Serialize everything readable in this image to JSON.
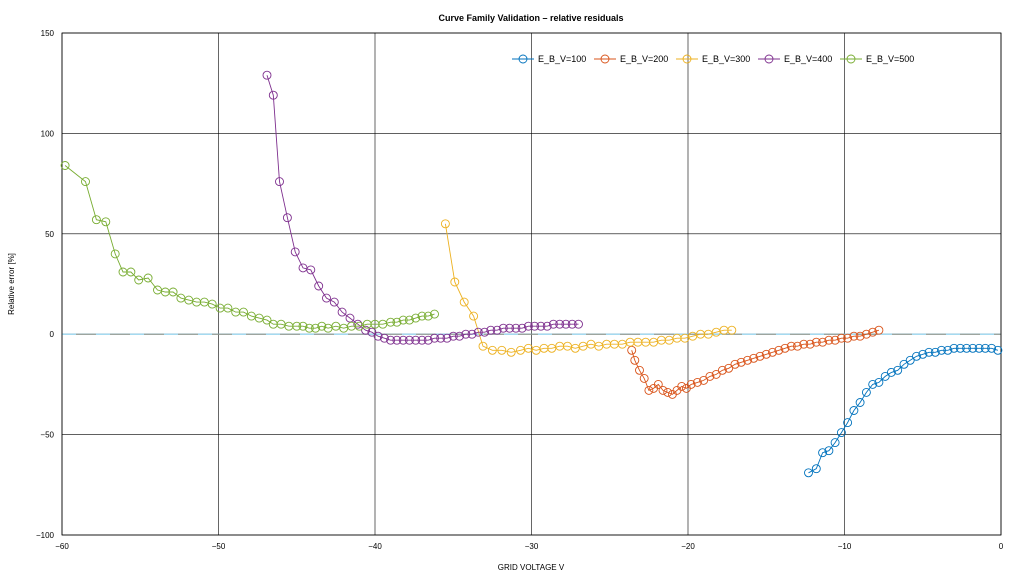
{
  "chart_data": {
    "type": "line",
    "title": "Curve Family Validation – relative residuals",
    "xlabel": "GRID VOLTAGE V",
    "ylabel": "Relative error [%]",
    "xlim": [
      -60,
      0
    ],
    "ylim": [
      -100,
      150
    ],
    "xticks": [
      -60,
      -50,
      -40,
      -30,
      -20,
      -10,
      0
    ],
    "yticks": [
      -100,
      -50,
      0,
      50,
      100,
      150
    ],
    "xtick_labels": [
      "−60",
      "−50",
      "−40",
      "−30",
      "−20",
      "−10",
      "0"
    ],
    "ytick_labels": [
      "−100",
      "−50",
      "0",
      "50",
      "100",
      "150"
    ],
    "grid": true,
    "legend_position": "top-right",
    "zero_line_color": "#87ceeb",
    "series": [
      {
        "name": "E_B_V=100",
        "color": "#0072bd",
        "x": [
          -12.3,
          -11.8,
          -11.4,
          -11.0,
          -10.6,
          -10.2,
          -9.8,
          -9.4,
          -9.0,
          -8.6,
          -8.2,
          -7.8,
          -7.4,
          -7.0,
          -6.6,
          -6.2,
          -5.8,
          -5.4,
          -5.0,
          -4.6,
          -4.2,
          -3.8,
          -3.4,
          -3.0,
          -2.6,
          -2.2,
          -1.8,
          -1.4,
          -1.0,
          -0.6,
          -0.2
        ],
        "y": [
          -69,
          -67,
          -59,
          -58,
          -54,
          -49,
          -44,
          -38,
          -34,
          -29,
          -25,
          -24,
          -21,
          -19,
          -18,
          -15,
          -13,
          -11,
          -10,
          -9,
          -9,
          -8,
          -8,
          -7,
          -7,
          -7,
          -7,
          -7,
          -7,
          -7,
          -8
        ]
      },
      {
        "name": "E_B_V=200",
        "color": "#d95319",
        "x": [
          -23.6,
          -23.4,
          -23.1,
          -22.8,
          -22.5,
          -22.2,
          -21.9,
          -21.6,
          -21.3,
          -21.0,
          -20.7,
          -20.4,
          -20.1,
          -19.8,
          -19.4,
          -19.0,
          -18.6,
          -18.2,
          -17.8,
          -17.4,
          -17.0,
          -16.6,
          -16.2,
          -15.8,
          -15.4,
          -15.0,
          -14.6,
          -14.2,
          -13.8,
          -13.4,
          -13.0,
          -12.6,
          -12.2,
          -11.8,
          -11.4,
          -11.0,
          -10.6,
          -10.2,
          -9.8,
          -9.4,
          -9.0,
          -8.6,
          -8.2,
          -7.8
        ],
        "y": [
          -8,
          -13,
          -18,
          -22,
          -28,
          -27,
          -25,
          -28,
          -29,
          -30,
          -28,
          -26,
          -27,
          -25,
          -24,
          -23,
          -21,
          -20,
          -18,
          -17,
          -15,
          -14,
          -13,
          -12,
          -11,
          -10,
          -9,
          -8,
          -7,
          -6,
          -6,
          -5,
          -5,
          -4,
          -4,
          -3,
          -3,
          -2,
          -2,
          -1,
          -1,
          0,
          1,
          2
        ]
      },
      {
        "name": "E_B_V=300",
        "color": "#edb120",
        "x": [
          -35.5,
          -34.9,
          -34.3,
          -33.7,
          -33.1,
          -32.5,
          -31.9,
          -31.3,
          -30.7,
          -30.2,
          -29.7,
          -29.2,
          -28.7,
          -28.2,
          -27.7,
          -27.2,
          -26.7,
          -26.2,
          -25.7,
          -25.2,
          -24.7,
          -24.2,
          -23.7,
          -23.2,
          -22.7,
          -22.2,
          -21.7,
          -21.2,
          -20.7,
          -20.2,
          -19.7,
          -19.2,
          -18.7,
          -18.2,
          -17.7,
          -17.2
        ],
        "y": [
          55,
          26,
          16,
          9,
          -6,
          -8,
          -8,
          -9,
          -8,
          -7,
          -8,
          -7,
          -7,
          -6,
          -6,
          -7,
          -6,
          -5,
          -6,
          -5,
          -5,
          -5,
          -4,
          -4,
          -4,
          -4,
          -3,
          -3,
          -2,
          -2,
          -1,
          0,
          0,
          1,
          2,
          2
        ]
      },
      {
        "name": "E_B_V=400",
        "color": "#7e2f8e",
        "x": [
          -46.9,
          -46.5,
          -46.1,
          -45.6,
          -45.1,
          -44.6,
          -44.1,
          -43.6,
          -43.1,
          -42.6,
          -42.1,
          -41.6,
          -41.1,
          -40.6,
          -40.2,
          -39.8,
          -39.4,
          -39.0,
          -38.6,
          -38.2,
          -37.8,
          -37.4,
          -37.0,
          -36.6,
          -36.2,
          -35.8,
          -35.4,
          -35.0,
          -34.6,
          -34.2,
          -33.8,
          -33.4,
          -33.0,
          -32.6,
          -32.2,
          -31.8,
          -31.4,
          -31.0,
          -30.6,
          -30.2,
          -29.8,
          -29.4,
          -29.0,
          -28.6,
          -28.2,
          -27.8,
          -27.4,
          -27.0
        ],
        "y": [
          129,
          119,
          76,
          58,
          41,
          33,
          32,
          24,
          18,
          16,
          11,
          8,
          5,
          2,
          1,
          -1,
          -2,
          -3,
          -3,
          -3,
          -3,
          -3,
          -3,
          -3,
          -2,
          -2,
          -2,
          -1,
          -1,
          0,
          0,
          1,
          1,
          2,
          2,
          3,
          3,
          3,
          3,
          4,
          4,
          4,
          4,
          5,
          5,
          5,
          5,
          5
        ]
      },
      {
        "name": "E_B_V=500",
        "color": "#77ac30",
        "x": [
          -59.8,
          -58.5,
          -57.8,
          -57.2,
          -56.6,
          -56.1,
          -55.6,
          -55.1,
          -54.5,
          -53.9,
          -53.4,
          -52.9,
          -52.4,
          -51.9,
          -51.4,
          -50.9,
          -50.4,
          -49.9,
          -49.4,
          -48.9,
          -48.4,
          -47.9,
          -47.4,
          -46.9,
          -46.5,
          -46.0,
          -45.5,
          -45.0,
          -44.6,
          -44.2,
          -43.8,
          -43.4,
          -43.0,
          -42.5,
          -42.0,
          -41.5,
          -41.0,
          -40.5,
          -40.0,
          -39.5,
          -39.0,
          -38.6,
          -38.2,
          -37.8,
          -37.4,
          -37.0,
          -36.6,
          -36.2
        ],
        "y": [
          84,
          76,
          57,
          56,
          40,
          31,
          31,
          27,
          28,
          22,
          21,
          21,
          18,
          17,
          16,
          16,
          15,
          13,
          13,
          11,
          11,
          9,
          8,
          7,
          5,
          5,
          4,
          4,
          4,
          3,
          3,
          4,
          3,
          4,
          3,
          4,
          4,
          5,
          5,
          5,
          6,
          6,
          7,
          7,
          8,
          9,
          9,
          10
        ]
      }
    ]
  }
}
